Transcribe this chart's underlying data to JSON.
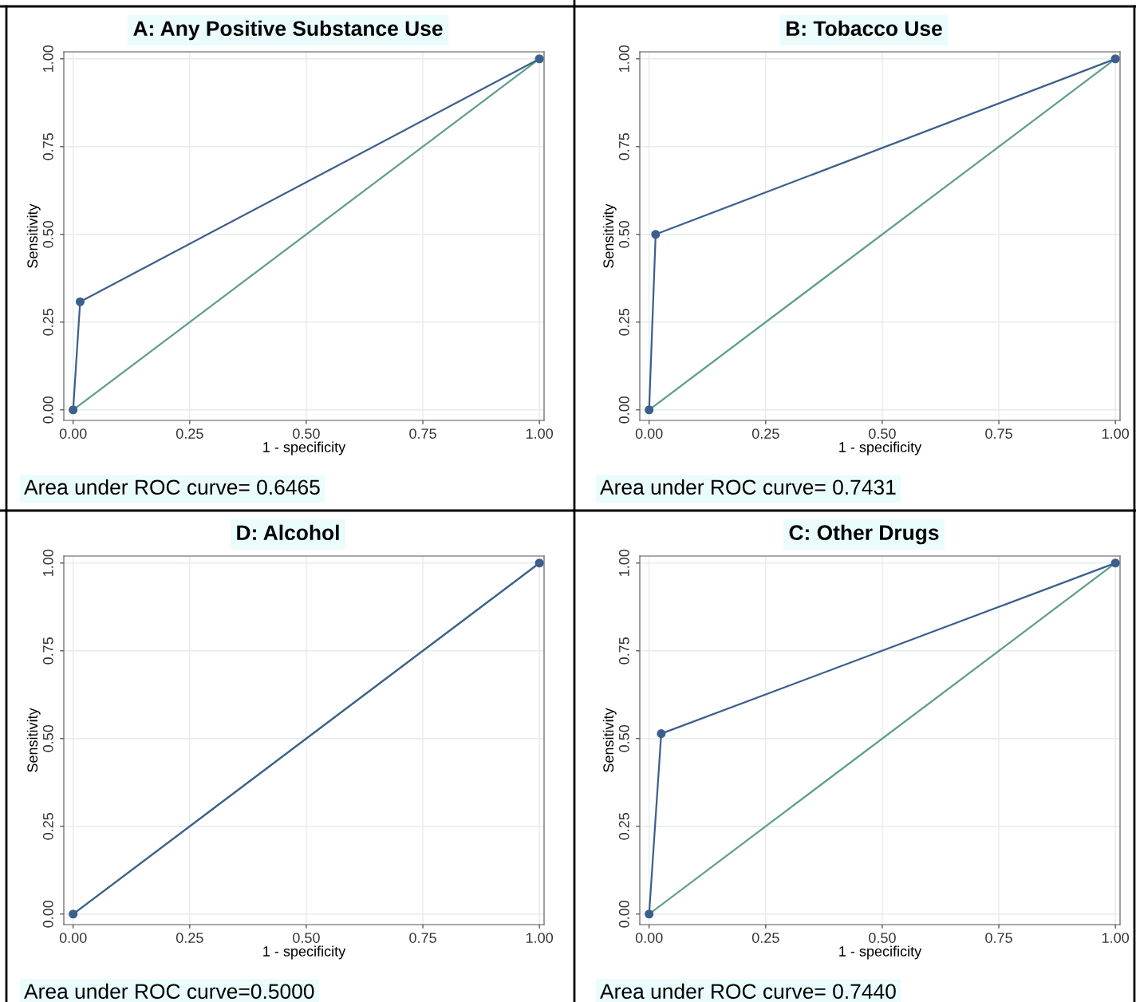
{
  "chart_data": [
    {
      "type": "line",
      "title": "A: Any Positive Substance Use",
      "xlabel": "1 - specificity",
      "ylabel": "Sensitivity",
      "xlim": [
        -0.02,
        1.01
      ],
      "ylim": [
        -0.03,
        1.02
      ],
      "xticks": [
        {
          "value": 0,
          "label": "0.00"
        },
        {
          "value": 0.25,
          "label": "0.25"
        },
        {
          "value": 0.5,
          "label": "0.50"
        },
        {
          "value": 0.75,
          "label": "0.75"
        },
        {
          "value": 1,
          "label": "1.00"
        }
      ],
      "yticks": [
        {
          "value": 0,
          "label": "0.00"
        },
        {
          "value": 0.25,
          "label": "0.25"
        },
        {
          "value": 0.5,
          "label": "0.50"
        },
        {
          "value": 0.75,
          "label": "0.75"
        },
        {
          "value": 1,
          "label": "1.00"
        }
      ],
      "grid": true,
      "annotations": [
        "Area under ROC curve= 0.6465"
      ],
      "series": [
        {
          "color": "#3d5f8c",
          "marker": "circle",
          "x": [
            0,
            0.015,
            1
          ],
          "values": [
            0,
            0.308,
            1
          ]
        },
        {
          "color": "#5e9e8c",
          "marker": "none",
          "x": [
            0,
            1
          ],
          "values": [
            0,
            1
          ]
        }
      ]
    },
    {
      "type": "line",
      "title": "B: Tobacco Use",
      "xlabel": "1 - specificity",
      "ylabel": "Sensitivity",
      "xlim": [
        -0.02,
        1.01
      ],
      "ylim": [
        -0.03,
        1.02
      ],
      "xticks": [
        {
          "value": 0,
          "label": "0.00"
        },
        {
          "value": 0.25,
          "label": "0.25"
        },
        {
          "value": 0.5,
          "label": "0.50"
        },
        {
          "value": 0.75,
          "label": "0.75"
        },
        {
          "value": 1,
          "label": "1.00"
        }
      ],
      "yticks": [
        {
          "value": 0,
          "label": "0.00"
        },
        {
          "value": 0.25,
          "label": "0.25"
        },
        {
          "value": 0.5,
          "label": "0.50"
        },
        {
          "value": 0.75,
          "label": "0.75"
        },
        {
          "value": 1,
          "label": "1.00"
        }
      ],
      "grid": true,
      "annotations": [
        "Area under ROC curve= 0.7431"
      ],
      "series": [
        {
          "color": "#3d5f8c",
          "marker": "circle",
          "x": [
            0,
            0.014,
            1
          ],
          "values": [
            0,
            0.5,
            1
          ]
        },
        {
          "color": "#5e9e8c",
          "marker": "none",
          "x": [
            0,
            1
          ],
          "values": [
            0,
            1
          ]
        }
      ]
    },
    {
      "type": "line",
      "title": "D: Alcohol",
      "xlabel": "1 - specificity",
      "ylabel": "Sensitivity",
      "xlim": [
        -0.02,
        1.01
      ],
      "ylim": [
        -0.03,
        1.02
      ],
      "xticks": [
        {
          "value": 0,
          "label": "0.00"
        },
        {
          "value": 0.25,
          "label": "0.25"
        },
        {
          "value": 0.5,
          "label": "0.50"
        },
        {
          "value": 0.75,
          "label": "0.75"
        },
        {
          "value": 1,
          "label": "1.00"
        }
      ],
      "yticks": [
        {
          "value": 0,
          "label": "0.00"
        },
        {
          "value": 0.25,
          "label": "0.25"
        },
        {
          "value": 0.5,
          "label": "0.50"
        },
        {
          "value": 0.75,
          "label": "0.75"
        },
        {
          "value": 1,
          "label": "1.00"
        }
      ],
      "grid": true,
      "annotations": [
        "Area under ROC curve=0.5000"
      ],
      "series": [
        {
          "color": "#3d5f8c",
          "marker": "circle",
          "x": [
            0,
            1
          ],
          "values": [
            0,
            1
          ]
        },
        {
          "color": "#5e9e8c",
          "marker": "none",
          "x": [
            0,
            1
          ],
          "values": [
            0,
            1
          ]
        }
      ]
    },
    {
      "type": "line",
      "title": "C: Other Drugs",
      "xlabel": "1 - specificity",
      "ylabel": "Sensitivity",
      "xlim": [
        -0.02,
        1.01
      ],
      "ylim": [
        -0.03,
        1.02
      ],
      "xticks": [
        {
          "value": 0,
          "label": "0.00"
        },
        {
          "value": 0.25,
          "label": "0.25"
        },
        {
          "value": 0.5,
          "label": "0.50"
        },
        {
          "value": 0.75,
          "label": "0.75"
        },
        {
          "value": 1,
          "label": "1.00"
        }
      ],
      "yticks": [
        {
          "value": 0,
          "label": "0.00"
        },
        {
          "value": 0.25,
          "label": "0.25"
        },
        {
          "value": 0.5,
          "label": "0.50"
        },
        {
          "value": 0.75,
          "label": "0.75"
        },
        {
          "value": 1,
          "label": "1.00"
        }
      ],
      "grid": true,
      "annotations": [
        "Area under ROC curve= 0.7440"
      ],
      "series": [
        {
          "color": "#3d5f8c",
          "marker": "circle",
          "x": [
            0,
            0.026,
            1
          ],
          "values": [
            0,
            0.514,
            1
          ]
        },
        {
          "color": "#5e9e8c",
          "marker": "none",
          "x": [
            0,
            1
          ],
          "values": [
            0,
            1
          ]
        }
      ]
    }
  ]
}
